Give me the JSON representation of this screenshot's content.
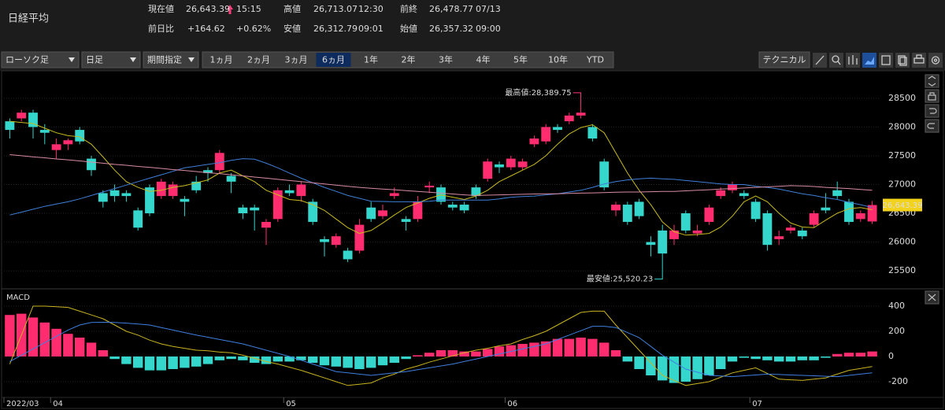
{
  "quote": {
    "title": "日経平均",
    "items": [
      [
        "現在値",
        "26,643.39",
        "15:15"
      ],
      [
        "高値",
        "26,713.07",
        "12:30"
      ],
      [
        "前終",
        "26,478.77",
        "07/13"
      ],
      [
        "前日比",
        "+164.62",
        "+0.62%"
      ],
      [
        "安値",
        "26,312.79",
        "09:01"
      ],
      [
        "始値",
        "26,357.32",
        "09:00"
      ]
    ],
    "highlight_color": "#ff3b7a"
  },
  "toolbar": {
    "selects": [
      "ローソク足",
      "日足",
      "期間指定"
    ],
    "periods": [
      "1ヵ月",
      "2ヵ月",
      "3ヵ月",
      "6ヵ月",
      "1年",
      "2年",
      "3年",
      "4年",
      "5年",
      "10年",
      "YTD"
    ],
    "active_period": "6ヵ月",
    "technical": "テクニカル"
  },
  "chart_data": [
    {
      "type": "candlestick",
      "categories": [
        "2022/03",
        null,
        null,
        null,
        "04",
        null,
        null,
        null,
        null,
        null,
        null,
        null,
        null,
        null,
        null,
        null,
        null,
        null,
        null,
        null,
        null,
        null,
        null,
        null,
        "05",
        null,
        null,
        null,
        null,
        null,
        null,
        null,
        null,
        null,
        null,
        null,
        null,
        null,
        null,
        null,
        null,
        null,
        null,
        "06",
        null,
        null,
        null,
        null,
        null,
        null,
        null,
        null,
        null,
        null,
        null,
        null,
        null,
        null,
        null,
        null,
        null,
        null,
        null,
        null,
        "07",
        null,
        null,
        null,
        null,
        null,
        null,
        null,
        null,
        null,
        null
      ],
      "open": [
        28100,
        28150,
        28250,
        27950,
        27600,
        27700,
        27950,
        27450,
        26850,
        26900,
        26850,
        26550,
        26950,
        26800,
        26800,
        26750,
        27050,
        27250,
        27250,
        27150,
        26600,
        26600,
        26250,
        26400,
        26900,
        26800,
        26700,
        26050,
        25950,
        25850,
        25850,
        26600,
        26450,
        26800,
        26400,
        26400,
        26950,
        26950,
        26650,
        26650,
        26950,
        27100,
        27350,
        27300,
        27300,
        27700,
        27750,
        28000,
        28100,
        28200,
        28000,
        27400,
        26550,
        26650,
        26700,
        26000,
        26200,
        26050,
        26500,
        26150,
        26350,
        26800,
        26900,
        26850,
        26700,
        26500,
        26050,
        26200,
        26200,
        26300,
        26600,
        26900,
        26700,
        26400,
        26357.32
      ],
      "high": [
        28150,
        28300,
        28300,
        28050,
        27800,
        27800,
        28000,
        27500,
        26900,
        27000,
        26900,
        26600,
        27000,
        27100,
        27050,
        26800,
        27150,
        27300,
        27600,
        27200,
        26650,
        26650,
        26400,
        26950,
        27000,
        27050,
        26750,
        26100,
        26150,
        25900,
        26400,
        26700,
        26650,
        26950,
        26450,
        26800,
        27050,
        27000,
        26700,
        26700,
        27000,
        27450,
        27400,
        27500,
        27450,
        27850,
        28050,
        28050,
        28250,
        28389.75,
        28050,
        27450,
        26700,
        26700,
        26750,
        26100,
        26300,
        26300,
        26550,
        26300,
        26650,
        26950,
        27050,
        26900,
        26750,
        26550,
        26200,
        26300,
        26250,
        26550,
        26850,
        27050,
        26750,
        26550,
        26713.07
      ],
      "low": [
        27800,
        28100,
        27800,
        27700,
        27450,
        27600,
        27700,
        27150,
        26600,
        26700,
        26700,
        26200,
        26450,
        26750,
        26750,
        26450,
        26850,
        27050,
        27200,
        26850,
        26400,
        26200,
        25950,
        26350,
        26800,
        26700,
        26300,
        25750,
        25900,
        25650,
        25800,
        26350,
        26400,
        26750,
        26200,
        26350,
        26850,
        26650,
        26550,
        26500,
        26750,
        27050,
        27200,
        27250,
        27250,
        27650,
        27700,
        27900,
        28050,
        28150,
        27750,
        26900,
        26450,
        26300,
        26400,
        25750,
        25520.23,
        25950,
        26150,
        26100,
        26300,
        26750,
        26850,
        26750,
        26350,
        25850,
        25950,
        26150,
        26050,
        26250,
        26500,
        26750,
        26300,
        26350,
        26312.79
      ],
      "close": [
        27950,
        28250,
        28000,
        27900,
        27700,
        27770,
        27750,
        27250,
        26700,
        26800,
        26800,
        26250,
        26500,
        27050,
        27000,
        26700,
        26900,
        27200,
        27550,
        27050,
        26500,
        26550,
        26350,
        26900,
        26850,
        27000,
        26350,
        26000,
        26100,
        25700,
        26300,
        26400,
        26550,
        26850,
        26350,
        26700,
        26980,
        26700,
        26600,
        26550,
        26800,
        27400,
        27300,
        27450,
        27400,
        27800,
        28000,
        27950,
        28200,
        28250,
        27800,
        26950,
        26650,
        26350,
        26450,
        25950,
        25800,
        26200,
        26200,
        26200,
        26600,
        26900,
        27000,
        26800,
        26400,
        25950,
        26100,
        26250,
        26100,
        26500,
        26550,
        26800,
        26350,
        26500,
        26643.39
      ],
      "up_color": "#ff2d6f",
      "down_color": "#35d6cc",
      "lines": [
        {
          "color": "#c9bb1e",
          "values": [
            28100,
            28080,
            28060,
            27980,
            27900,
            27850,
            27830,
            27700,
            27480,
            27250,
            27050,
            26950,
            26880,
            26900,
            26950,
            26980,
            27030,
            27080,
            27200,
            27250,
            27150,
            27050,
            26900,
            26820,
            26740,
            26720,
            26650,
            26550,
            26400,
            26250,
            26150,
            26200,
            26330,
            26470,
            26600,
            26680,
            26760,
            26820,
            26780,
            26740,
            26800,
            26900,
            27050,
            27150,
            27250,
            27350,
            27500,
            27700,
            27880,
            27990,
            28040,
            27900,
            27550,
            27200,
            26900,
            26650,
            26350,
            26180,
            26120,
            26130,
            26150,
            26260,
            26450,
            26700,
            26800,
            26700,
            26500,
            26330,
            26260,
            26250,
            26380,
            26500,
            26580,
            26600,
            26560
          ]
        },
        {
          "color": "#3f7fd8",
          "values": [
            26470,
            26520,
            26570,
            26620,
            26660,
            26700,
            26750,
            26810,
            26870,
            26930,
            26990,
            27050,
            27110,
            27170,
            27230,
            27290,
            27320,
            27350,
            27380,
            27420,
            27450,
            27440,
            27370,
            27290,
            27200,
            27110,
            27030,
            26950,
            26880,
            26810,
            26760,
            26710,
            26705,
            26700,
            26700,
            26700,
            26710,
            26730,
            26730,
            26730,
            26730,
            26730,
            26750,
            26780,
            26790,
            26800,
            26820,
            26840,
            26870,
            26900,
            26950,
            27010,
            27050,
            27080,
            27100,
            27110,
            27100,
            27090,
            27070,
            27050,
            27030,
            27010,
            27000,
            27000,
            26970,
            26950,
            26920,
            26880,
            26840,
            26810,
            26770,
            26740,
            26690,
            26650,
            26600
          ]
        },
        {
          "color": "#d98ca3",
          "values": [
            27520,
            27500,
            27480,
            27465,
            27445,
            27430,
            27410,
            27390,
            27370,
            27350,
            27335,
            27315,
            27300,
            27280,
            27260,
            27245,
            27225,
            27205,
            27190,
            27170,
            27150,
            27130,
            27110,
            27090,
            27070,
            27050,
            27030,
            27010,
            26990,
            26970,
            26950,
            26935,
            26920,
            26910,
            26895,
            26880,
            26865,
            26850,
            26835,
            26820,
            26810,
            26815,
            26820,
            26825,
            26830,
            26835,
            26840,
            26840,
            26845,
            26850,
            26855,
            26860,
            26865,
            26870,
            26870,
            26875,
            26880,
            26880,
            26890,
            26900,
            26910,
            26920,
            26930,
            26940,
            26950,
            26960,
            26970,
            26980,
            26975,
            26965,
            26950,
            26940,
            26930,
            26915,
            26900
          ]
        }
      ],
      "high_label": {
        "text": "最高値:28,389.75",
        "value": 28389.75,
        "color": "#ff3b7a"
      },
      "low_label": {
        "text": "最安値:25,520.23",
        "value": 25520.23,
        "color": "#35d6cc"
      },
      "last_price": {
        "value": 26643.39,
        "label": "26,643.39",
        "color": "#f2d21a"
      },
      "ylim": [
        25200,
        28950
      ],
      "yticks": [
        25500,
        26000,
        26500,
        27000,
        27500,
        28000,
        28500
      ],
      "grid": true
    },
    {
      "type": "macd",
      "title": "MACD",
      "values": [
        330,
        340,
        310,
        270,
        220,
        180,
        150,
        110,
        50,
        -20,
        -60,
        -90,
        -110,
        -110,
        -100,
        -90,
        -80,
        -60,
        -30,
        -20,
        -30,
        -50,
        -60,
        -40,
        -40,
        -30,
        -50,
        -70,
        -80,
        -90,
        -100,
        -90,
        -70,
        -50,
        -20,
        10,
        30,
        50,
        50,
        40,
        40,
        60,
        80,
        90,
        100,
        110,
        120,
        140,
        140,
        150,
        140,
        110,
        50,
        -40,
        -100,
        -150,
        -190,
        -210,
        -200,
        -180,
        -150,
        -100,
        -40,
        -10,
        -20,
        -30,
        -40,
        -40,
        -30,
        -30,
        -10,
        20,
        30,
        30,
        40
      ],
      "pos_color": "#ff2d6f",
      "neg_color": "#35d6cc",
      "lines": [
        {
          "color": "#c9b420",
          "values": [
            -60,
            170,
            400,
            400,
            395,
            390,
            360,
            330,
            300,
            250,
            200,
            170,
            130,
            100,
            80,
            65,
            50,
            45,
            35,
            30,
            10,
            -15,
            -40,
            -60,
            -85,
            -110,
            -140,
            -170,
            -200,
            -230,
            -220,
            -210,
            -170,
            -140,
            -100,
            -75,
            -45,
            -20,
            5,
            30,
            50,
            65,
            85,
            100,
            135,
            165,
            200,
            250,
            300,
            350,
            360,
            360,
            250,
            150,
            50,
            -50,
            -150,
            -190,
            -230,
            -215,
            -200,
            -165,
            -130,
            -110,
            -90,
            -135,
            -180,
            -185,
            -190,
            -180,
            -170,
            -140,
            -110,
            -95,
            -80
          ]
        },
        {
          "color": "#3f7fe0",
          "values": [
            -40,
            10,
            60,
            110,
            160,
            210,
            250,
            270,
            272,
            270,
            265,
            258,
            250,
            230,
            210,
            190,
            170,
            153,
            135,
            118,
            100,
            75,
            50,
            25,
            0,
            -30,
            -60,
            -90,
            -120,
            -130,
            -140,
            -150,
            -140,
            -130,
            -120,
            -105,
            -90,
            -75,
            -60,
            -40,
            -20,
            0,
            20,
            40,
            60,
            80,
            100,
            135,
            170,
            205,
            240,
            240,
            230,
            190,
            150,
            80,
            10,
            -45,
            -100,
            -125,
            -150,
            -155,
            -160,
            -153,
            -147,
            -140,
            -143,
            -147,
            -150,
            -153,
            -157,
            -160,
            -150,
            -140,
            -130
          ]
        }
      ],
      "title_color": "#e0c040",
      "ylim": [
        -325,
        519
      ],
      "yticks": [
        -200,
        0,
        200,
        400
      ],
      "grid": true
    }
  ]
}
